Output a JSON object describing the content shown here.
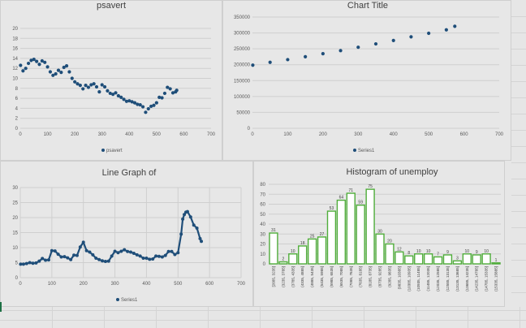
{
  "colors": {
    "marker": "#1f4e79",
    "hist_border": "#4fad3a"
  },
  "chart_data": [
    {
      "type": "scatter",
      "title": "psavert",
      "legend": "psavert",
      "legend_position": "bottom",
      "xlim": [
        0,
        700
      ],
      "ylim": [
        0,
        20
      ],
      "xticks": [
        0,
        100,
        200,
        300,
        400,
        500,
        600,
        700
      ],
      "yticks": [
        0,
        2,
        4,
        6,
        8,
        10,
        12,
        14,
        16,
        18,
        20
      ],
      "x": [
        1,
        10,
        20,
        30,
        40,
        50,
        60,
        70,
        80,
        90,
        100,
        110,
        120,
        130,
        140,
        150,
        160,
        170,
        180,
        190,
        200,
        210,
        220,
        230,
        240,
        250,
        260,
        270,
        280,
        290,
        300,
        310,
        320,
        330,
        340,
        350,
        360,
        370,
        380,
        390,
        400,
        410,
        420,
        430,
        440,
        450,
        460,
        470,
        480,
        490,
        500,
        510,
        520,
        530,
        540,
        550,
        560,
        570,
        574
      ],
      "y": [
        12.6,
        11.5,
        12.0,
        13.0,
        13.6,
        13.8,
        13.4,
        12.8,
        13.5,
        13.2,
        12.3,
        11.3,
        10.6,
        10.9,
        11.6,
        11.2,
        12.2,
        12.5,
        11.3,
        10.0,
        9.3,
        8.9,
        8.6,
        7.9,
        8.6,
        8.2,
        8.7,
        8.9,
        8.3,
        7.3,
        8.7,
        8.3,
        7.5,
        7.0,
        6.8,
        7.1,
        6.5,
        6.2,
        5.8,
        5.4,
        5.5,
        5.3,
        5.1,
        4.8,
        4.7,
        4.3,
        3.2,
        3.9,
        4.4,
        4.6,
        5.1,
        6.2,
        6.1,
        7.0,
        8.2,
        7.9,
        7.1,
        7.3,
        7.6
      ]
    },
    {
      "type": "scatter",
      "title": "Chart Title",
      "legend": "Series1",
      "legend_position": "bottom",
      "xlim": [
        0,
        700
      ],
      "ylim": [
        0,
        350000
      ],
      "xticks": [
        0,
        100,
        200,
        300,
        400,
        500,
        600,
        700
      ],
      "yticks": [
        0,
        50000,
        100000,
        150000,
        200000,
        250000,
        300000,
        350000
      ],
      "x": [
        1,
        50,
        100,
        150,
        200,
        250,
        300,
        350,
        400,
        450,
        500,
        550,
        574
      ],
      "y": [
        198712,
        207500,
        216000,
        225200,
        234800,
        244400,
        255000,
        265500,
        276200,
        287800,
        298900,
        309800,
        320887
      ]
    },
    {
      "type": "line",
      "title": "Line Graph of",
      "legend": "Series1",
      "legend_position": "bottom",
      "xlim": [
        0,
        700
      ],
      "ylim": [
        0,
        30
      ],
      "xticks": [
        0,
        100,
        200,
        300,
        400,
        500,
        600,
        700
      ],
      "yticks": [
        0,
        5,
        10,
        15,
        20,
        25,
        30
      ],
      "x": [
        1,
        10,
        20,
        30,
        40,
        50,
        60,
        70,
        80,
        90,
        100,
        110,
        120,
        130,
        140,
        150,
        160,
        170,
        180,
        190,
        200,
        210,
        220,
        230,
        240,
        250,
        260,
        270,
        280,
        290,
        300,
        310,
        320,
        330,
        340,
        350,
        360,
        370,
        380,
        390,
        400,
        410,
        420,
        430,
        440,
        450,
        460,
        470,
        480,
        490,
        500,
        510,
        515,
        520,
        525,
        530,
        540,
        550,
        560,
        570,
        574
      ],
      "y": [
        4.5,
        4.5,
        4.7,
        5.0,
        4.8,
        4.9,
        5.5,
        6.4,
        5.8,
        5.9,
        9.0,
        8.9,
        7.8,
        6.9,
        7.0,
        6.6,
        6.0,
        7.5,
        7.4,
        10.2,
        11.8,
        9.0,
        8.5,
        7.6,
        6.5,
        6.0,
        5.6,
        5.4,
        5.5,
        7.2,
        8.8,
        8.3,
        8.8,
        9.3,
        8.7,
        8.5,
        8.1,
        7.6,
        7.2,
        6.5,
        6.5,
        6.1,
        6.2,
        7.2,
        7.1,
        6.9,
        7.4,
        8.7,
        8.7,
        7.7,
        8.3,
        14.5,
        19.5,
        21.0,
        21.8,
        22.0,
        20.2,
        17.5,
        16.5,
        13.0,
        12.1
      ]
    },
    {
      "type": "bar",
      "title": "Histogram of unemploy",
      "ylim": [
        0,
        80
      ],
      "yticks": [
        0,
        10,
        20,
        30,
        40,
        50,
        60,
        70,
        80
      ],
      "categories": [
        "[2685, 3235]",
        "(3235, 3785]",
        "(3785, 4335]",
        "(4335, 4885]",
        "(4885, 5435]",
        "(5435, 5985]",
        "(5985, 6535]",
        "(6535, 7085]",
        "(7085, 7635]",
        "(7635, 8185]",
        "(8185, 8735]",
        "(8735, 9285]",
        "(9285, 9835]",
        "(9835, 10385]",
        "(10385, 10935]",
        "(10935, 11485]",
        "(11485, 12035]",
        "(12035, 12585]",
        "(12585, 13135]",
        "(13135, 13685]",
        "(13685, 14235]",
        "(14235, 14785]",
        "(14785, 15335]",
        "(15335, 15885]"
      ],
      "values": [
        31,
        2,
        10,
        18,
        25,
        27,
        53,
        64,
        71,
        59,
        75,
        30,
        20,
        12,
        8,
        10,
        10,
        7,
        9,
        3,
        10,
        9,
        10,
        1
      ]
    }
  ]
}
